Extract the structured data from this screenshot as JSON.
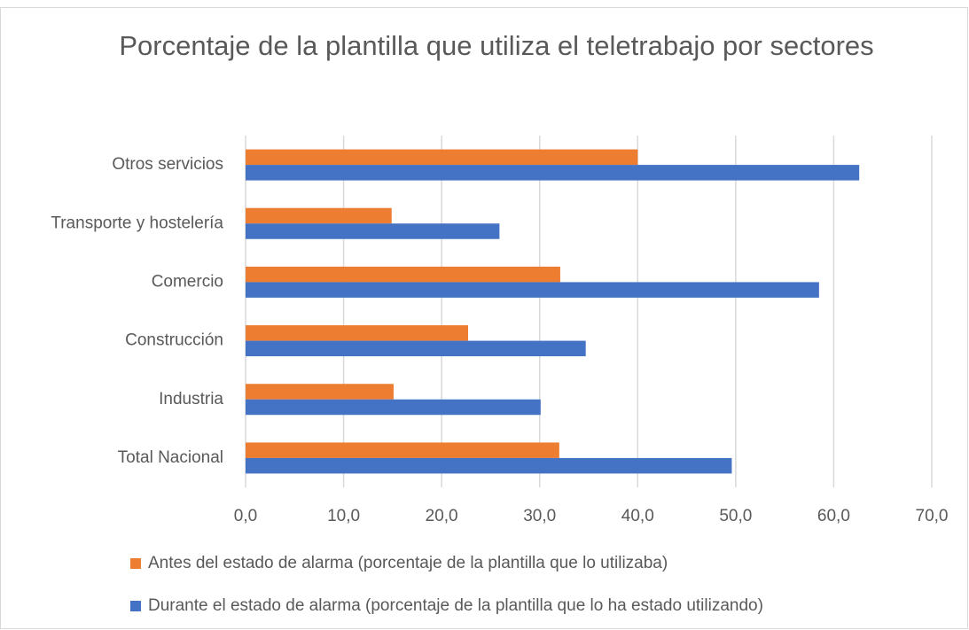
{
  "chart_data": {
    "type": "bar",
    "orientation": "horizontal",
    "title": "Porcentaje de la plantilla que utiliza el teletrabajo por sectores",
    "categories": [
      "Otros servicios",
      "Transporte y hostelería",
      "Comercio",
      "Construcción",
      "Industria",
      "Total Nacional"
    ],
    "series": [
      {
        "name": "Antes del estado de alarma (porcentaje de la plantilla que lo utilizaba)",
        "color": "#ED7D31",
        "values": [
          40.0,
          14.9,
          32.1,
          22.7,
          15.1,
          32.0
        ]
      },
      {
        "name": "Durante el estado de alarma (porcentaje de la plantilla que lo ha estado utilizando)",
        "color": "#4472C4",
        "values": [
          62.6,
          25.9,
          58.5,
          34.7,
          30.1,
          49.6
        ]
      }
    ],
    "xlim": [
      0,
      70
    ],
    "xticks": [
      {
        "value": 0,
        "label": "0,0"
      },
      {
        "value": 10,
        "label": "10,0"
      },
      {
        "value": 20,
        "label": "20,0"
      },
      {
        "value": 30,
        "label": "30,0"
      },
      {
        "value": 40,
        "label": "40,0"
      },
      {
        "value": 50,
        "label": "50,0"
      },
      {
        "value": 60,
        "label": "60,0"
      },
      {
        "value": 70,
        "label": "70,0"
      }
    ],
    "grid": true,
    "legend": "bottom"
  }
}
